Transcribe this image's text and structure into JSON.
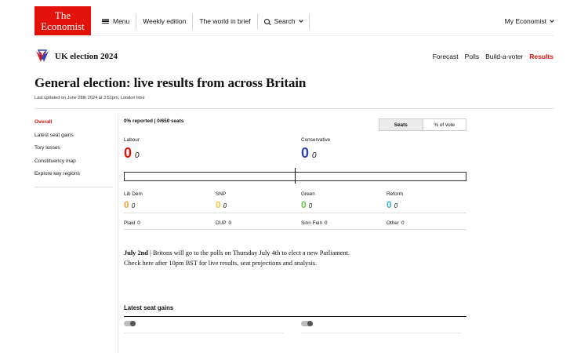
{
  "header": {
    "logo_line1": "The",
    "logo_line2": "Economist",
    "menu": "Menu",
    "weekly": "Weekly edition",
    "brief": "The world in brief",
    "search": "Search",
    "account": "My Economist"
  },
  "election_nav": {
    "title": "UK election 2024",
    "links": [
      "Forecast",
      "Polls",
      "Build-a-voter",
      "Results"
    ],
    "active": "Results"
  },
  "page": {
    "title": "General election: live results from across Britain",
    "updated": "Last updated on June 28th 2024 at 3:51pm, London time"
  },
  "sidebar": {
    "items": [
      "Overall",
      "Latest seat gains",
      "Tory losses",
      "Constituency map",
      "Explore key regions"
    ]
  },
  "results": {
    "reported": "0% reported | 0/650 seats",
    "toggle": [
      "Seats",
      "% of vote"
    ],
    "main_parties": [
      {
        "name": "Labour",
        "seats": "0",
        "gain": "0",
        "color": "#e3120b"
      },
      {
        "name": "Conservative",
        "seats": "0",
        "gain": "0",
        "color": "#2e45b8"
      }
    ],
    "other_parties": [
      {
        "name": "Lib Dem",
        "seats": "0",
        "gain": "0",
        "color": "#f0a33a"
      },
      {
        "name": "SNP",
        "seats": "0",
        "gain": "0",
        "color": "#f3c64a"
      },
      {
        "name": "Green",
        "seats": "0",
        "gain": "0",
        "color": "#6cc24a"
      },
      {
        "name": "Reform",
        "seats": "0",
        "gain": "0",
        "color": "#39b3c6"
      }
    ],
    "minor_parties": [
      {
        "name": "Plaid",
        "seats": "0"
      },
      {
        "name": "DUP",
        "seats": "0"
      },
      {
        "name": "Sinn Fein",
        "seats": "0"
      },
      {
        "name": "Other",
        "seats": "0"
      }
    ]
  },
  "notice": {
    "date": "July 2nd",
    "text": " | Britons will go to the polls on Thursday July 4th to elect a new Parliament. Check here after 10pm BST for live results, seat projections and analysis."
  },
  "gains": {
    "heading": "Latest seat gains"
  }
}
